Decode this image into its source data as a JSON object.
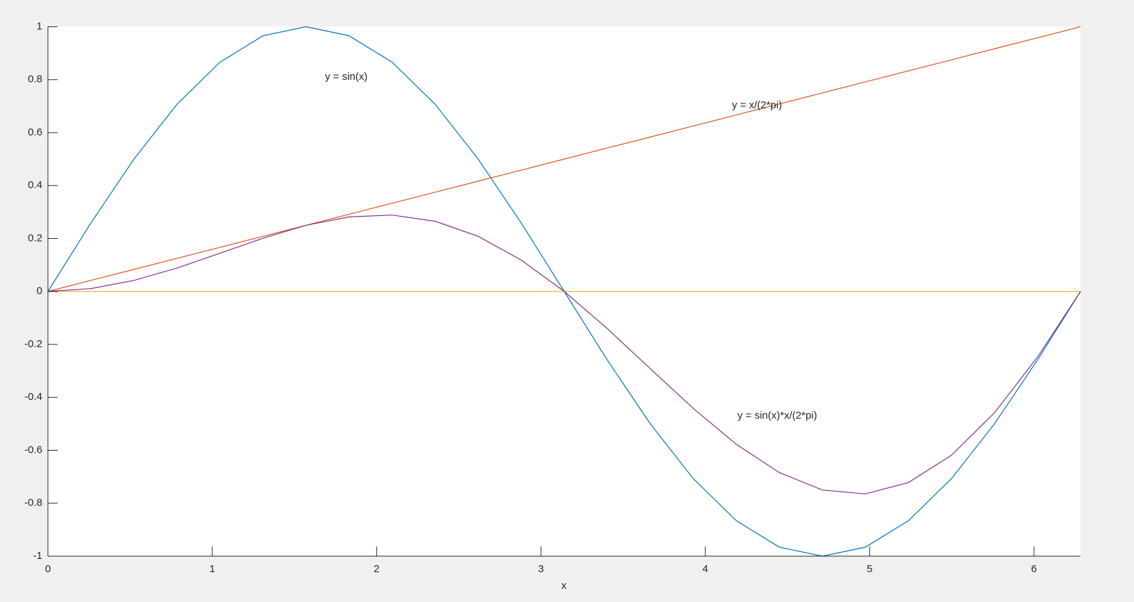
{
  "chart_data": {
    "type": "line",
    "xlabel": "x",
    "x": [
      0,
      0.2618,
      0.5236,
      0.7854,
      1.0472,
      1.309,
      1.5708,
      1.8326,
      2.0944,
      2.3562,
      2.618,
      2.8798,
      3.1416,
      3.4034,
      3.6652,
      3.927,
      4.1888,
      4.4506,
      4.7124,
      4.9742,
      5.236,
      5.4978,
      5.7596,
      6.0214,
      6.2832
    ],
    "series": [
      {
        "color": "#0072BD",
        "values": [
          0,
          0.2588,
          0.5,
          0.7071,
          0.866,
          0.9659,
          1,
          0.9659,
          0.866,
          0.7071,
          0.5,
          0.2588,
          0,
          -0.2588,
          -0.5,
          -0.7071,
          -0.866,
          -0.9659,
          -1,
          -0.9659,
          -0.866,
          -0.7071,
          -0.5,
          -0.2588,
          0
        ]
      },
      {
        "color": "#D95319",
        "values": [
          0,
          0.0417,
          0.0833,
          0.125,
          0.1667,
          0.2083,
          0.25,
          0.2917,
          0.3333,
          0.375,
          0.4167,
          0.4583,
          0.5,
          0.5417,
          0.5833,
          0.625,
          0.6667,
          0.7083,
          0.75,
          0.7917,
          0.8333,
          0.875,
          0.9167,
          0.9583,
          1
        ]
      },
      {
        "color": "#EDB120",
        "values": [
          0,
          0,
          0,
          0,
          0,
          0,
          0,
          0,
          0,
          0,
          0,
          0,
          0,
          0,
          0,
          0,
          0,
          0,
          0,
          0,
          0,
          0,
          0,
          0,
          0
        ]
      },
      {
        "color": "#7E2F8E",
        "values": [
          0,
          0.0108,
          0.0417,
          0.0884,
          0.1443,
          0.2012,
          0.25,
          0.2817,
          0.2887,
          0.2652,
          0.2083,
          0.1186,
          0,
          -0.1402,
          -0.2917,
          -0.4419,
          -0.5774,
          -0.6842,
          -0.75,
          -0.7647,
          -0.7217,
          -0.6187,
          -0.4583,
          -0.248,
          0
        ]
      }
    ],
    "annotations": [
      "y = sin(x)",
      "y = x/(2*pi)",
      "y = sin(x)*x/(2*pi)"
    ],
    "xlim": [
      0,
      6.2832
    ],
    "ylim": [
      -1,
      1
    ],
    "xticks": [
      0,
      1,
      2,
      3,
      4,
      5,
      6
    ],
    "yticks": [
      -1,
      -0.8,
      -0.6,
      -0.4,
      -0.2,
      0,
      0.2,
      0.4,
      0.6,
      0.8,
      1
    ]
  }
}
